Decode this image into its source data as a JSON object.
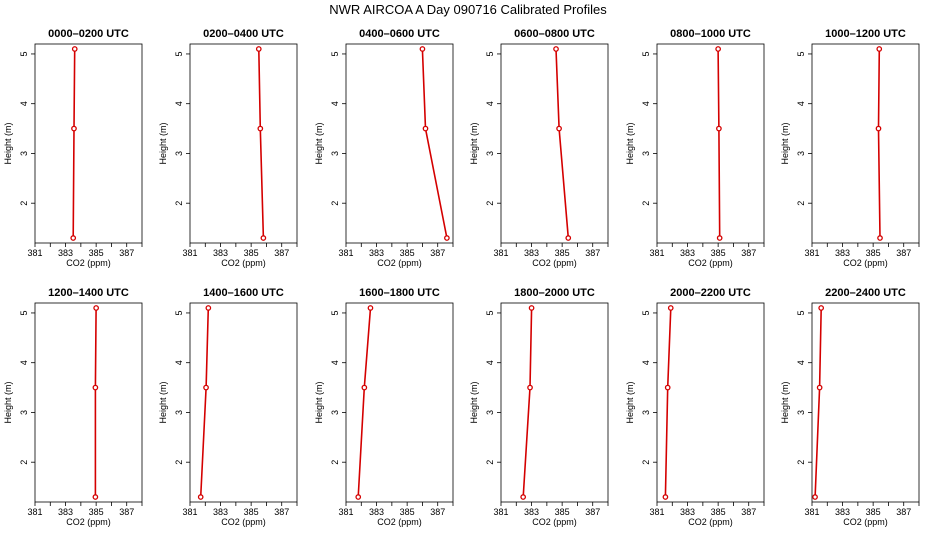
{
  "title": "NWR AIRCOA A  Day 090716  Calibrated Profiles",
  "chart_data": [
    {
      "type": "line",
      "title": "0000–0200 UTC",
      "xlabel": "CO2 (ppm)",
      "ylabel": "Height (m)",
      "xlim": [
        381,
        388
      ],
      "ylim": [
        1.2,
        5.2
      ],
      "xticks": [
        "381",
        "383",
        "385",
        "387"
      ],
      "yticks": [
        "2",
        "3",
        "4",
        "5"
      ],
      "x": [
        383.6,
        383.55,
        383.5
      ],
      "y": [
        5.1,
        3.5,
        1.3
      ],
      "color": "#d40000"
    },
    {
      "type": "line",
      "title": "0200–0400 UTC",
      "xlabel": "CO2 (ppm)",
      "ylabel": "Height (m)",
      "xlim": [
        381,
        388
      ],
      "ylim": [
        1.2,
        5.2
      ],
      "xticks": [
        "381",
        "383",
        "385",
        "387"
      ],
      "yticks": [
        "2",
        "3",
        "4",
        "5"
      ],
      "x": [
        385.5,
        385.6,
        385.8
      ],
      "y": [
        5.1,
        3.5,
        1.3
      ],
      "color": "#d40000"
    },
    {
      "type": "line",
      "title": "0400–0600 UTC",
      "xlabel": "CO2 (ppm)",
      "ylabel": "Height (m)",
      "xlim": [
        381,
        388
      ],
      "ylim": [
        1.2,
        5.2
      ],
      "xticks": [
        "381",
        "383",
        "385",
        "387"
      ],
      "yticks": [
        "2",
        "3",
        "4",
        "5"
      ],
      "x": [
        386.0,
        386.2,
        387.6
      ],
      "y": [
        5.1,
        3.5,
        1.3
      ],
      "color": "#d40000"
    },
    {
      "type": "line",
      "title": "0600–0800 UTC",
      "xlabel": "CO2 (ppm)",
      "ylabel": "Height (m)",
      "xlim": [
        381,
        388
      ],
      "ylim": [
        1.2,
        5.2
      ],
      "xticks": [
        "381",
        "383",
        "385",
        "387"
      ],
      "yticks": [
        "2",
        "3",
        "4",
        "5"
      ],
      "x": [
        384.6,
        384.8,
        385.4
      ],
      "y": [
        5.1,
        3.5,
        1.3
      ],
      "color": "#d40000"
    },
    {
      "type": "line",
      "title": "0800–1000 UTC",
      "xlabel": "CO2 (ppm)",
      "ylabel": "Height (m)",
      "xlim": [
        381,
        388
      ],
      "ylim": [
        1.2,
        5.2
      ],
      "xticks": [
        "381",
        "383",
        "385",
        "387"
      ],
      "yticks": [
        "2",
        "3",
        "4",
        "5"
      ],
      "x": [
        385.0,
        385.05,
        385.1
      ],
      "y": [
        5.1,
        3.5,
        1.3
      ],
      "color": "#d40000"
    },
    {
      "type": "line",
      "title": "1000–1200 UTC",
      "xlabel": "CO2 (ppm)",
      "ylabel": "Height (m)",
      "xlim": [
        381,
        388
      ],
      "ylim": [
        1.2,
        5.2
      ],
      "xticks": [
        "381",
        "383",
        "385",
        "387"
      ],
      "yticks": [
        "2",
        "3",
        "4",
        "5"
      ],
      "x": [
        385.4,
        385.35,
        385.45
      ],
      "y": [
        5.1,
        3.5,
        1.3
      ],
      "color": "#d40000"
    },
    {
      "type": "line",
      "title": "1200–1400 UTC",
      "xlabel": "CO2 (ppm)",
      "ylabel": "Height (m)",
      "xlim": [
        381,
        388
      ],
      "ylim": [
        1.2,
        5.2
      ],
      "xticks": [
        "381",
        "383",
        "385",
        "387"
      ],
      "yticks": [
        "2",
        "3",
        "4",
        "5"
      ],
      "x": [
        385.0,
        384.95,
        384.95
      ],
      "y": [
        5.1,
        3.5,
        1.3
      ],
      "color": "#d40000"
    },
    {
      "type": "line",
      "title": "1400–1600 UTC",
      "xlabel": "CO2 (ppm)",
      "ylabel": "Height (m)",
      "xlim": [
        381,
        388
      ],
      "ylim": [
        1.2,
        5.2
      ],
      "xticks": [
        "381",
        "383",
        "385",
        "387"
      ],
      "yticks": [
        "2",
        "3",
        "4",
        "5"
      ],
      "x": [
        382.2,
        382.05,
        381.7
      ],
      "y": [
        5.1,
        3.5,
        1.3
      ],
      "color": "#d40000"
    },
    {
      "type": "line",
      "title": "1600–1800 UTC",
      "xlabel": "CO2 (ppm)",
      "ylabel": "Height (m)",
      "xlim": [
        381,
        388
      ],
      "ylim": [
        1.2,
        5.2
      ],
      "xticks": [
        "381",
        "383",
        "385",
        "387"
      ],
      "yticks": [
        "2",
        "3",
        "4",
        "5"
      ],
      "x": [
        382.6,
        382.2,
        381.8
      ],
      "y": [
        5.1,
        3.5,
        1.3
      ],
      "color": "#d40000"
    },
    {
      "type": "line",
      "title": "1800–2000 UTC",
      "xlabel": "CO2 (ppm)",
      "ylabel": "Height (m)",
      "xlim": [
        381,
        388
      ],
      "ylim": [
        1.2,
        5.2
      ],
      "xticks": [
        "381",
        "383",
        "385",
        "387"
      ],
      "yticks": [
        "2",
        "3",
        "4",
        "5"
      ],
      "x": [
        383.0,
        382.9,
        382.45
      ],
      "y": [
        5.1,
        3.5,
        1.3
      ],
      "color": "#d40000"
    },
    {
      "type": "line",
      "title": "2000–2200 UTC",
      "xlabel": "CO2 (ppm)",
      "ylabel": "Height (m)",
      "xlim": [
        381,
        388
      ],
      "ylim": [
        1.2,
        5.2
      ],
      "xticks": [
        "381",
        "383",
        "385",
        "387"
      ],
      "yticks": [
        "2",
        "3",
        "4",
        "5"
      ],
      "x": [
        381.9,
        381.7,
        381.55
      ],
      "y": [
        5.1,
        3.5,
        1.3
      ],
      "color": "#d40000"
    },
    {
      "type": "line",
      "title": "2200–2400 UTC",
      "xlabel": "CO2 (ppm)",
      "ylabel": "Height (m)",
      "xlim": [
        381,
        388
      ],
      "ylim": [
        1.2,
        5.2
      ],
      "xticks": [
        "381",
        "383",
        "385",
        "387"
      ],
      "yticks": [
        "2",
        "3",
        "4",
        "5"
      ],
      "x": [
        381.6,
        381.5,
        381.2
      ],
      "y": [
        5.1,
        3.5,
        1.3
      ],
      "color": "#d40000"
    }
  ]
}
